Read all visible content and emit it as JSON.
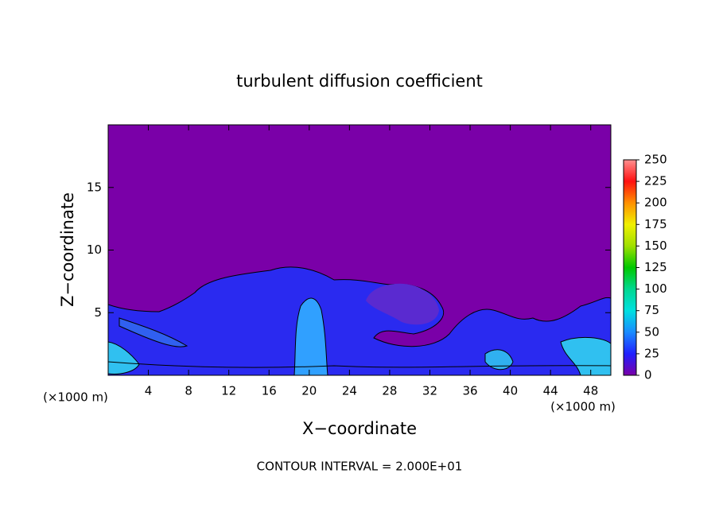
{
  "chart_data": {
    "type": "contour",
    "title": "turbulent diffusion coefficient",
    "x_label": "X−coordinate",
    "y_label": "Z−coordinate",
    "x_unit_left": "(×1000 m)",
    "x_unit_right": "(×1000 m)",
    "footer": "CONTOUR INTERVAL = 2.000E+01",
    "xlim": [
      0,
      50
    ],
    "xticks": [
      4,
      8,
      12,
      16,
      20,
      24,
      28,
      32,
      36,
      40,
      44,
      48
    ],
    "ylim": [
      0,
      20
    ],
    "yticks": [
      5,
      10,
      15
    ],
    "colorbar": {
      "lim": [
        0,
        250
      ],
      "ticks": [
        0,
        25,
        50,
        75,
        100,
        125,
        150,
        175,
        200,
        225,
        250
      ],
      "colors": [
        "#7a00a8",
        "#2020ff",
        "#1a8cff",
        "#00e0e0",
        "#00d890",
        "#00c800",
        "#a0e000",
        "#f0f000",
        "#ff9000",
        "#ff1010",
        "#ff9090"
      ]
    }
  }
}
